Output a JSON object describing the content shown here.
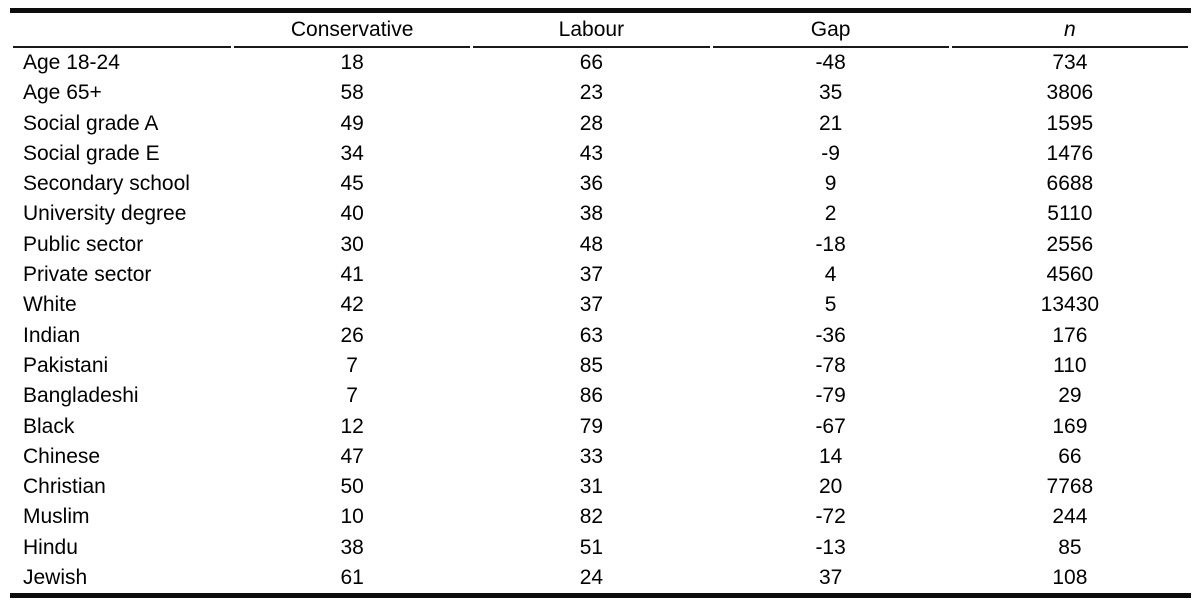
{
  "table": {
    "columns": [
      "",
      "Conservative",
      "Labour",
      "Gap",
      "n"
    ],
    "column_keys": [
      "label",
      "conservative",
      "labour",
      "gap",
      "n"
    ],
    "rows": [
      {
        "label": "Age 18-24",
        "conservative": "18",
        "labour": "66",
        "gap": "-48",
        "n": "734"
      },
      {
        "label": "Age 65+",
        "conservative": "58",
        "labour": "23",
        "gap": "35",
        "n": "3806"
      },
      {
        "label": "Social grade A",
        "conservative": "49",
        "labour": "28",
        "gap": "21",
        "n": "1595"
      },
      {
        "label": "Social grade E",
        "conservative": "34",
        "labour": "43",
        "gap": "-9",
        "n": "1476"
      },
      {
        "label": "Secondary school",
        "conservative": "45",
        "labour": "36",
        "gap": "9",
        "n": "6688"
      },
      {
        "label": "University degree",
        "conservative": "40",
        "labour": "38",
        "gap": "2",
        "n": "5110"
      },
      {
        "label": "Public sector",
        "conservative": "30",
        "labour": "48",
        "gap": "-18",
        "n": "2556"
      },
      {
        "label": "Private sector",
        "conservative": "41",
        "labour": "37",
        "gap": "4",
        "n": "4560"
      },
      {
        "label": "White",
        "conservative": "42",
        "labour": "37",
        "gap": "5",
        "n": "13430"
      },
      {
        "label": "Indian",
        "conservative": "26",
        "labour": "63",
        "gap": "-36",
        "n": "176"
      },
      {
        "label": "Pakistani",
        "conservative": "7",
        "labour": "85",
        "gap": "-78",
        "n": "110"
      },
      {
        "label": "Bangladeshi",
        "conservative": "7",
        "labour": "86",
        "gap": "-79",
        "n": "29"
      },
      {
        "label": "Black",
        "conservative": "12",
        "labour": "79",
        "gap": "-67",
        "n": "169"
      },
      {
        "label": "Chinese",
        "conservative": "47",
        "labour": "33",
        "gap": "14",
        "n": "66"
      },
      {
        "label": "Christian",
        "conservative": "50",
        "labour": "31",
        "gap": "20",
        "n": "7768"
      },
      {
        "label": "Muslim",
        "conservative": "10",
        "labour": "82",
        "gap": "-72",
        "n": "244"
      },
      {
        "label": "Hindu",
        "conservative": "38",
        "labour": "51",
        "gap": "-13",
        "n": "85"
      },
      {
        "label": "Jewish",
        "conservative": "61",
        "labour": "24",
        "gap": "37",
        "n": "108"
      }
    ],
    "style": {
      "rule_color": "#0d0d0d",
      "text_color": "#000000",
      "background": "#ffffff"
    }
  }
}
